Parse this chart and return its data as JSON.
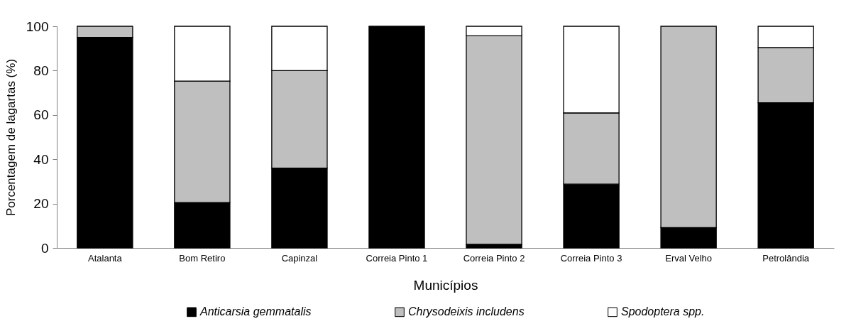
{
  "chart_data": {
    "type": "bar",
    "stacked": true,
    "xlabel": "Municípios",
    "ylabel": "Porcentagem de lagartas (%)",
    "categories": [
      "Atalanta",
      "Bom Retiro",
      "Capinzal",
      "Correia Pinto 1",
      "Correia Pinto 2",
      "Correia Pinto 3",
      "Erval Velho",
      "Petrolândia"
    ],
    "series": [
      {
        "name": "Anticarsia gemmatalis",
        "color": "#000000",
        "values": [
          95,
          20.5,
          36,
          100,
          1.6,
          28.8,
          9.2,
          65.5
        ]
      },
      {
        "name": "Chrysodeixis includens",
        "color": "#bfbfbf",
        "values": [
          5,
          54.8,
          44,
          0,
          94.1,
          32.1,
          90.8,
          24.9
        ]
      },
      {
        "name": "Spodoptera spp.",
        "color": "#ffffff",
        "values": [
          0,
          24.7,
          20,
          0,
          4.3,
          39.1,
          0,
          9.6
        ]
      }
    ],
    "ylim": [
      0,
      100
    ],
    "yticks": [
      0,
      20,
      40,
      60,
      80,
      100
    ],
    "grid": false,
    "legend": "bottom"
  }
}
